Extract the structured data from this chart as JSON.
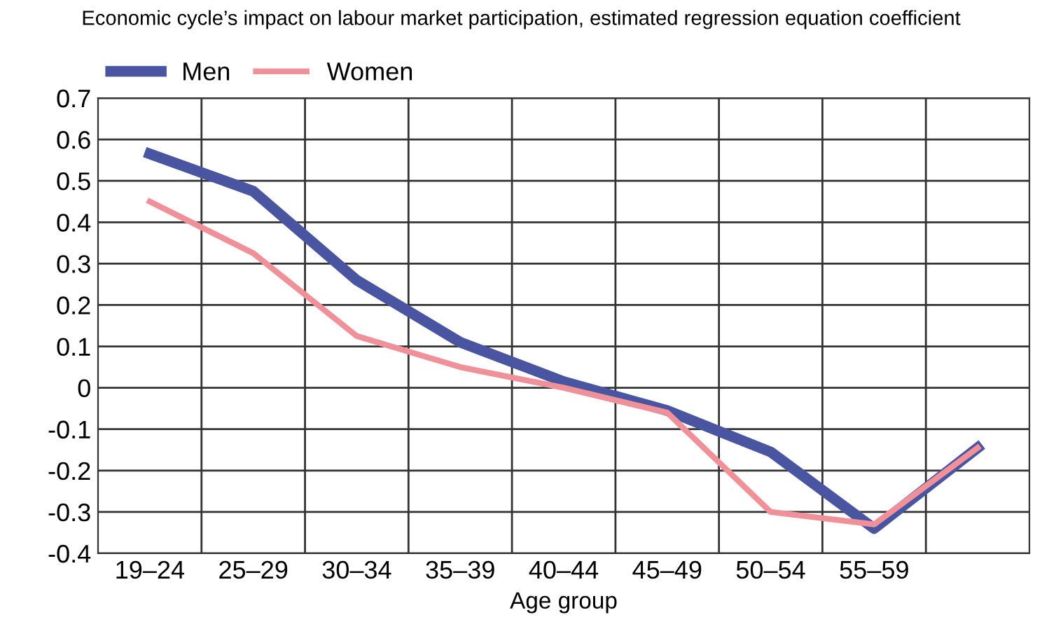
{
  "chart_data": {
    "type": "line",
    "title": "Economic cycle’s impact on labour market participation, estimated regression equation coefficient",
    "xlabel": "Age group",
    "categories": [
      "19–24",
      "25–29",
      "30–34",
      "35–39",
      "40–44",
      "45–49",
      "50–54",
      "55–59",
      null
    ],
    "series": [
      {
        "name": "Men",
        "color": "#4a55a2",
        "values": [
          0.565,
          0.475,
          0.26,
          0.11,
          0.015,
          -0.055,
          -0.155,
          -0.34,
          -0.145
        ]
      },
      {
        "name": "Women",
        "color": "#f0919a",
        "values": [
          0.45,
          0.325,
          0.125,
          0.05,
          0.0,
          -0.06,
          -0.3,
          -0.33,
          -0.145
        ]
      }
    ],
    "ylim": [
      -0.4,
      0.7
    ],
    "yticks": [
      -0.4,
      -0.3,
      -0.2,
      -0.1,
      0,
      0.1,
      0.2,
      0.3,
      0.4,
      0.5,
      0.6,
      0.7
    ],
    "grid": true,
    "legend": "top left",
    "marker": "none",
    "line_style": "solid"
  }
}
